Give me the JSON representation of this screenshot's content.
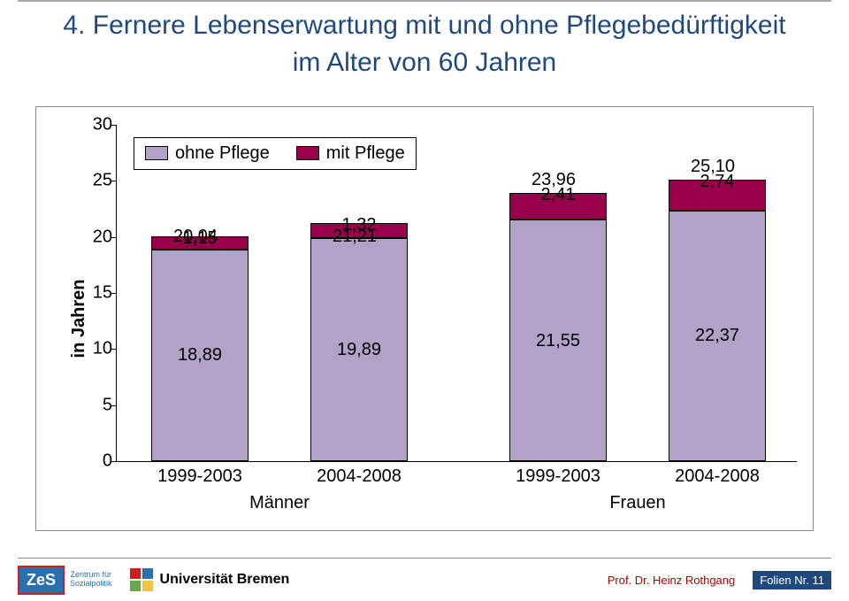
{
  "title_line1": "4. Fernere Lebenserwartung mit und ohne Pflegebedürftigkeit",
  "title_line2": "im Alter von 60 Jahren",
  "title_color": "#1f497d",
  "chart": {
    "type": "stacked-bar",
    "ylabel": "in Jahren",
    "ylim": [
      0,
      30
    ],
    "ytick_step": 5,
    "yticks": [
      0,
      5,
      10,
      15,
      20,
      25,
      30
    ],
    "background_color": "#ffffff",
    "colors": {
      "ohne": "#b3a2c7",
      "mit": "#99004c",
      "axis": "#000000"
    },
    "legend": {
      "items": [
        {
          "label": "ohne Pflege",
          "color": "#b3a2c7"
        },
        {
          "label": "mit Pflege",
          "color": "#99004c"
        }
      ]
    },
    "axis_fontsize": 20,
    "label_fontsize": 20,
    "bars": [
      {
        "category": "1999-2003",
        "group": "Männer",
        "total": 20.04,
        "total_label": "20,04",
        "segments": [
          {
            "key": "ohne",
            "value": 18.89,
            "label": "18,89"
          },
          {
            "key": "mit",
            "value": 1.15,
            "label": "1,15"
          }
        ]
      },
      {
        "category": "2004-2008",
        "group": "Männer",
        "total": 21.21,
        "total_label": "21,21",
        "segments": [
          {
            "key": "ohne",
            "value": 19.89,
            "label": "19,89"
          },
          {
            "key": "mit",
            "value": 1.32,
            "label": "1,32"
          }
        ]
      },
      {
        "category": "1999-2003",
        "group": "Frauen",
        "total": 23.96,
        "total_label": "23,96",
        "segments": [
          {
            "key": "ohne",
            "value": 21.55,
            "label": "21,55"
          },
          {
            "key": "mit",
            "value": 2.41,
            "label": "2,41"
          }
        ]
      },
      {
        "category": "2004-2008",
        "group": "Frauen",
        "total": 25.1,
        "total_label": "25,10",
        "segments": [
          {
            "key": "ohne",
            "value": 22.37,
            "label": "22,37"
          },
          {
            "key": "mit",
            "value": 2.74,
            "label": "2,74"
          }
        ]
      }
    ],
    "group_labels": [
      "Männer",
      "Frauen"
    ]
  },
  "footer": {
    "zes": "ZeS",
    "zes_sub": "Zentrum für\nSozialpolitik",
    "uni": "Universität Bremen",
    "prof": "Prof. Dr. Heinz Rothgang",
    "folien": "Folien Nr. 11",
    "uni_colors": [
      "#cc1f1f",
      "#2a6fb0",
      "#6aa84f",
      "#f4c542"
    ]
  }
}
